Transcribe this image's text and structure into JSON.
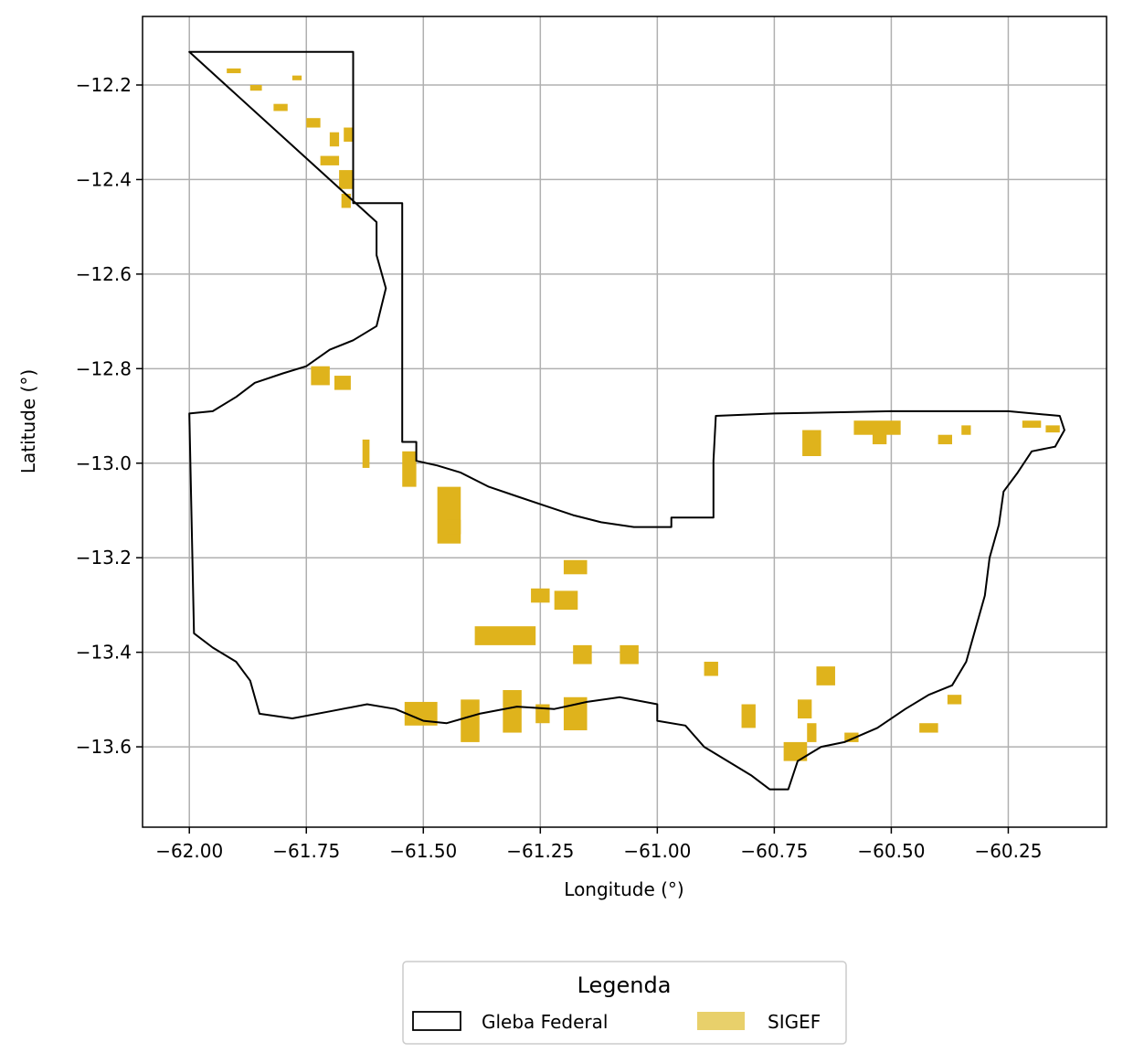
{
  "chart_data": {
    "type": "map",
    "title": "",
    "xlabel": "Longitude (°)",
    "ylabel": "Latitude (°)",
    "xlim": [
      -62.1,
      -60.04
    ],
    "ylim": [
      -13.77,
      -12.055
    ],
    "grid": true,
    "x_ticks": [
      -62.0,
      -61.75,
      -61.5,
      -61.25,
      -61.0,
      -60.75,
      -60.5,
      -60.25
    ],
    "x_tick_labels": [
      "−62.00",
      "−61.75",
      "−61.50",
      "−61.25",
      "−61.00",
      "−60.75",
      "−60.50",
      "−60.25"
    ],
    "y_ticks": [
      -12.2,
      -12.4,
      -12.6,
      -12.8,
      -13.0,
      -13.2,
      -13.4,
      -13.6
    ],
    "y_tick_labels": [
      "−12.2",
      "−12.4",
      "−12.6",
      "−12.8",
      "−13.0",
      "−13.2",
      "−13.4",
      "−13.6"
    ],
    "legend": {
      "title": "Legenda",
      "placement": "bottom-center",
      "entries": [
        {
          "label": "Gleba Federal",
          "style": "outline",
          "color": "#000000"
        },
        {
          "label": "SIGEF",
          "style": "fill",
          "color": "#e8d06b"
        }
      ]
    },
    "colors": {
      "gleba": "#000000",
      "sigef": "#dfb31c",
      "grid": "#b0b0b0"
    },
    "series": [
      {
        "name": "Gleba Federal",
        "polygons": [
          [
            [
              -62.0,
              -12.13
            ],
            [
              -61.65,
              -12.13
            ],
            [
              -61.65,
              -12.45
            ],
            [
              -61.545,
              -12.45
            ],
            [
              -61.545,
              -12.955
            ],
            [
              -61.515,
              -12.955
            ],
            [
              -61.515,
              -12.995
            ],
            [
              -61.47,
              -13.005
            ],
            [
              -61.42,
              -13.02
            ],
            [
              -61.36,
              -13.05
            ],
            [
              -61.3,
              -13.07
            ],
            [
              -61.24,
              -13.09
            ],
            [
              -61.18,
              -13.11
            ],
            [
              -61.12,
              -13.125
            ],
            [
              -61.05,
              -13.135
            ],
            [
              -60.97,
              -13.135
            ],
            [
              -60.97,
              -13.115
            ],
            [
              -60.88,
              -13.115
            ],
            [
              -60.88,
              -12.995
            ],
            [
              -60.875,
              -12.9
            ],
            [
              -60.75,
              -12.895
            ],
            [
              -60.5,
              -12.89
            ],
            [
              -60.25,
              -12.89
            ],
            [
              -60.14,
              -12.9
            ],
            [
              -60.13,
              -12.93
            ],
            [
              -60.15,
              -12.965
            ],
            [
              -60.2,
              -12.975
            ],
            [
              -60.23,
              -13.02
            ],
            [
              -60.26,
              -13.06
            ],
            [
              -60.27,
              -13.13
            ],
            [
              -60.29,
              -13.2
            ],
            [
              -60.3,
              -13.28
            ],
            [
              -60.32,
              -13.35
            ],
            [
              -60.34,
              -13.42
            ],
            [
              -60.37,
              -13.47
            ],
            [
              -60.42,
              -13.49
            ],
            [
              -60.47,
              -13.52
            ],
            [
              -60.53,
              -13.56
            ],
            [
              -60.6,
              -13.59
            ],
            [
              -60.65,
              -13.6
            ],
            [
              -60.7,
              -13.63
            ],
            [
              -60.72,
              -13.69
            ],
            [
              -60.76,
              -13.69
            ],
            [
              -60.8,
              -13.66
            ],
            [
              -60.85,
              -13.63
            ],
            [
              -60.9,
              -13.6
            ],
            [
              -60.94,
              -13.555
            ],
            [
              -61.0,
              -13.545
            ],
            [
              -61.0,
              -13.51
            ],
            [
              -61.08,
              -13.495
            ],
            [
              -61.15,
              -13.505
            ],
            [
              -61.22,
              -13.52
            ],
            [
              -61.3,
              -13.515
            ],
            [
              -61.38,
              -13.53
            ],
            [
              -61.45,
              -13.55
            ],
            [
              -61.5,
              -13.545
            ],
            [
              -61.56,
              -13.52
            ],
            [
              -61.62,
              -13.51
            ],
            [
              -61.7,
              -13.525
            ],
            [
              -61.78,
              -13.54
            ],
            [
              -61.85,
              -13.53
            ],
            [
              -61.87,
              -13.46
            ],
            [
              -61.9,
              -13.42
            ],
            [
              -61.95,
              -13.39
            ],
            [
              -61.99,
              -13.36
            ],
            [
              -62.0,
              -12.895
            ],
            [
              -61.95,
              -12.89
            ],
            [
              -61.9,
              -12.86
            ],
            [
              -61.86,
              -12.83
            ],
            [
              -61.8,
              -12.81
            ],
            [
              -61.75,
              -12.795
            ],
            [
              -61.7,
              -12.76
            ],
            [
              -61.65,
              -12.74
            ],
            [
              -61.6,
              -12.71
            ],
            [
              -61.58,
              -12.63
            ],
            [
              -61.6,
              -12.56
            ],
            [
              -61.6,
              -12.49
            ],
            [
              -62.0,
              -12.13
            ]
          ]
        ]
      },
      {
        "name": "SIGEF",
        "parcels": [
          [
            -61.92,
            -12.165,
            0.03,
            0.01
          ],
          [
            -61.87,
            -12.2,
            0.025,
            0.012
          ],
          [
            -61.82,
            -12.24,
            0.03,
            0.015
          ],
          [
            -61.78,
            -12.18,
            0.02,
            0.01
          ],
          [
            -61.75,
            -12.27,
            0.03,
            0.02
          ],
          [
            -61.7,
            -12.3,
            0.02,
            0.03
          ],
          [
            -61.67,
            -12.29,
            0.02,
            0.03
          ],
          [
            -61.72,
            -12.35,
            0.04,
            0.02
          ],
          [
            -61.68,
            -12.38,
            0.03,
            0.04
          ],
          [
            -61.675,
            -12.43,
            0.02,
            0.03
          ],
          [
            -61.74,
            -12.795,
            0.04,
            0.04
          ],
          [
            -61.69,
            -12.815,
            0.035,
            0.03
          ],
          [
            -61.545,
            -12.975,
            0.03,
            0.075
          ],
          [
            -61.63,
            -12.95,
            0.015,
            0.06
          ],
          [
            -61.47,
            -13.05,
            0.05,
            0.12
          ],
          [
            -61.45,
            -13.12,
            0.03,
            0.03
          ],
          [
            -61.2,
            -13.205,
            0.05,
            0.03
          ],
          [
            -61.27,
            -13.265,
            0.04,
            0.03
          ],
          [
            -61.22,
            -13.27,
            0.05,
            0.04
          ],
          [
            -61.39,
            -13.345,
            0.13,
            0.04
          ],
          [
            -61.18,
            -13.385,
            0.04,
            0.04
          ],
          [
            -61.54,
            -13.505,
            0.07,
            0.05
          ],
          [
            -61.42,
            -13.5,
            0.04,
            0.09
          ],
          [
            -61.33,
            -13.48,
            0.04,
            0.09
          ],
          [
            -61.2,
            -13.495,
            0.05,
            0.07
          ],
          [
            -61.26,
            -13.51,
            0.03,
            0.04
          ],
          [
            -61.08,
            -13.385,
            0.04,
            0.04
          ],
          [
            -60.9,
            -13.42,
            0.03,
            0.03
          ],
          [
            -60.82,
            -13.51,
            0.03,
            0.05
          ],
          [
            -60.73,
            -13.59,
            0.05,
            0.04
          ],
          [
            -60.7,
            -13.5,
            0.03,
            0.04
          ],
          [
            -60.68,
            -13.55,
            0.02,
            0.04
          ],
          [
            -60.66,
            -13.43,
            0.04,
            0.04
          ],
          [
            -60.58,
            -12.91,
            0.1,
            0.03
          ],
          [
            -60.54,
            -12.93,
            0.03,
            0.03
          ],
          [
            -60.69,
            -12.93,
            0.04,
            0.055
          ],
          [
            -60.4,
            -12.94,
            0.03,
            0.02
          ],
          [
            -60.35,
            -12.92,
            0.02,
            0.02
          ],
          [
            -60.22,
            -12.91,
            0.04,
            0.015
          ],
          [
            -60.17,
            -12.92,
            0.03,
            0.015
          ],
          [
            -60.44,
            -13.55,
            0.04,
            0.02
          ],
          [
            -60.38,
            -13.49,
            0.03,
            0.02
          ],
          [
            -60.6,
            -13.57,
            0.03,
            0.02
          ]
        ]
      }
    ]
  }
}
